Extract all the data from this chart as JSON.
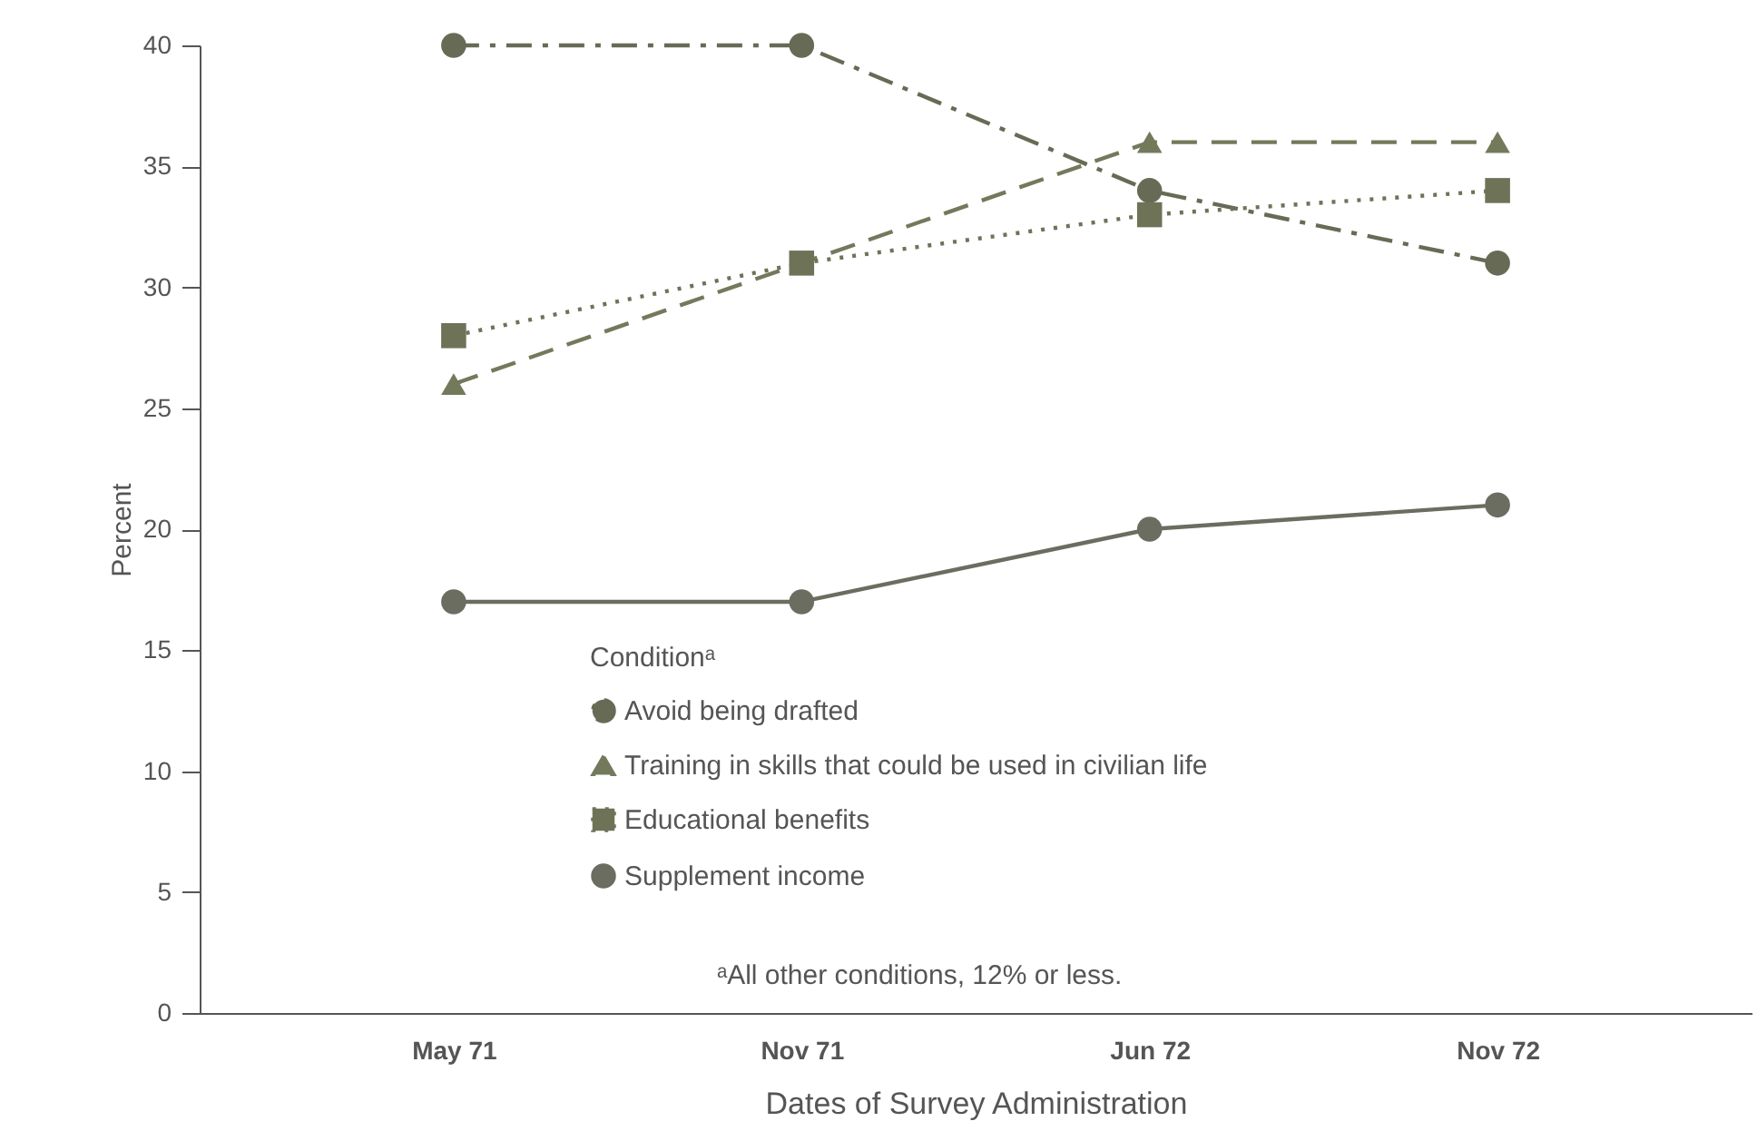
{
  "chart_data": {
    "type": "line",
    "xlabel": "Dates of Survey Administration",
    "ylabel": "Percent",
    "legend_title": "Conditionᵃ",
    "categories": [
      "May 71",
      "Nov 71",
      "Jun 72",
      "Nov 72"
    ],
    "series": [
      {
        "name": "Avoid being drafted",
        "color": "#676b55",
        "marker": "circle",
        "line_style": "dashdot",
        "values": [
          40,
          40,
          34,
          31
        ]
      },
      {
        "name": "Training in skills that could be used in civilian life",
        "color": "#737a5c",
        "marker": "triangle",
        "line_style": "dashed",
        "values": [
          26,
          31,
          36,
          36
        ]
      },
      {
        "name": "Educational benefits",
        "color": "#6e7358",
        "marker": "square",
        "line_style": "dotted",
        "values": [
          28,
          31,
          33,
          34
        ]
      },
      {
        "name": "Supplement income",
        "color": "#6a6d60",
        "marker": "circle",
        "line_style": "solid",
        "values": [
          17,
          17,
          20,
          21
        ]
      }
    ],
    "ylim": [
      0,
      40
    ],
    "yticks": [
      0,
      5,
      10,
      15,
      20,
      25,
      30,
      35,
      40
    ],
    "grid": false,
    "legend": "bottom",
    "annotations": [
      "ᵃAll other conditions, 12% or less."
    ]
  }
}
